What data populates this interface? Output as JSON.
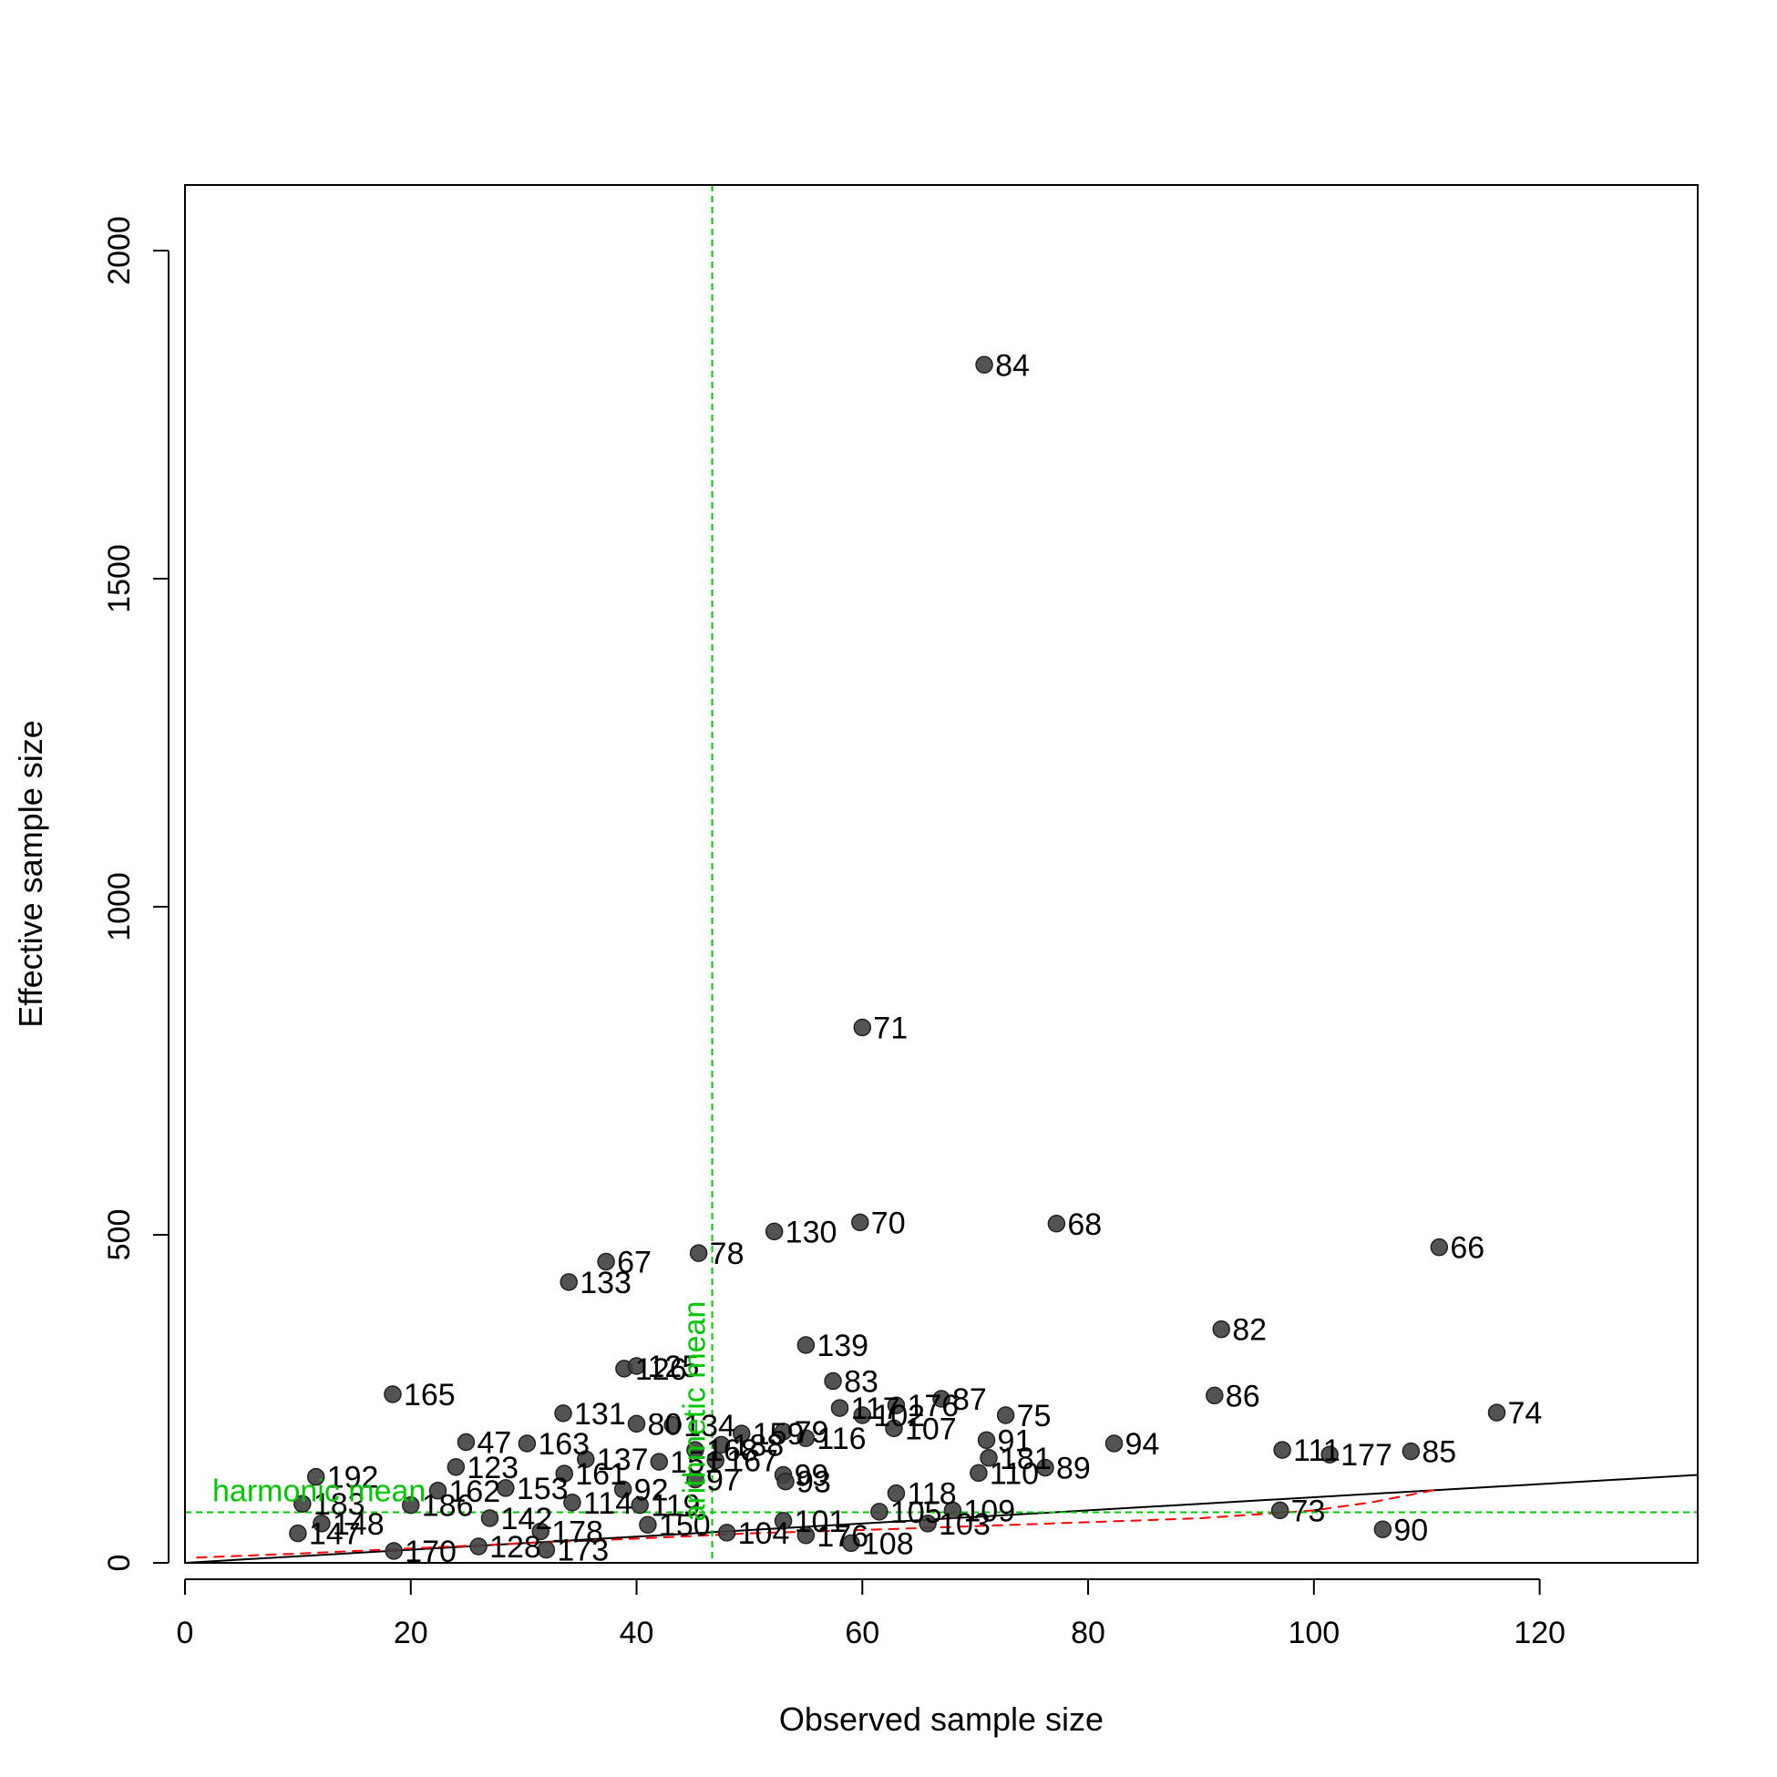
{
  "chart_data": {
    "type": "scatter",
    "title": "",
    "xlabel": "Observed sample size",
    "ylabel": "Effective sample size",
    "xlim": [
      0,
      134
    ],
    "ylim": [
      0,
      2100
    ],
    "xticks": [
      0,
      20,
      40,
      60,
      80,
      100,
      120
    ],
    "yticks": [
      0,
      500,
      1000,
      1500,
      2000
    ],
    "grid": false,
    "point_color": "#404040",
    "reference_lines": {
      "arithmetic_mean": {
        "label": "arithmetic mean",
        "x": 46.7,
        "color": "#00c800"
      },
      "harmonic_mean": {
        "label": "harmonic mean",
        "y": 77,
        "color": "#00c800"
      },
      "reference_line": {
        "from": [
          0,
          0
        ],
        "to": [
          134,
          134
        ],
        "color": "#000000"
      },
      "smoother": {
        "color": "#ff0000",
        "x": [
          1,
          10,
          20,
          30,
          40,
          50,
          60,
          70,
          80,
          90,
          100,
          105,
          111
        ],
        "y": [
          8,
          14,
          22,
          30,
          37,
          45,
          50,
          56,
          62,
          68,
          80,
          92,
          112
        ]
      }
    },
    "points": [
      {
        "label": "84",
        "x": 70.8,
        "y": 1826
      },
      {
        "label": "71",
        "x": 60.0,
        "y": 816
      },
      {
        "label": "70",
        "x": 59.8,
        "y": 519
      },
      {
        "label": "68",
        "x": 77.2,
        "y": 517
      },
      {
        "label": "66",
        "x": 111.1,
        "y": 481
      },
      {
        "label": "130",
        "x": 52.2,
        "y": 505
      },
      {
        "label": "78",
        "x": 45.5,
        "y": 472
      },
      {
        "label": "67",
        "x": 37.3,
        "y": 459
      },
      {
        "label": "133",
        "x": 34.0,
        "y": 428
      },
      {
        "label": "82",
        "x": 91.8,
        "y": 356
      },
      {
        "label": "139",
        "x": 55.0,
        "y": 332
      },
      {
        "label": "126",
        "x": 38.9,
        "y": 296
      },
      {
        "label": "125",
        "x": 40.0,
        "y": 300
      },
      {
        "label": "83",
        "x": 57.4,
        "y": 277
      },
      {
        "label": "165",
        "x": 18.4,
        "y": 257
      },
      {
        "label": "86",
        "x": 91.2,
        "y": 255
      },
      {
        "label": "87",
        "x": 67.0,
        "y": 250
      },
      {
        "label": "176",
        "x": 63.0,
        "y": 240
      },
      {
        "label": "117",
        "x": 58.0,
        "y": 236
      },
      {
        "label": "74",
        "x": 116.2,
        "y": 229
      },
      {
        "label": "131",
        "x": 33.5,
        "y": 228
      },
      {
        "label": "75",
        "x": 72.7,
        "y": 225
      },
      {
        "label": "102",
        "x": 60.0,
        "y": 225
      },
      {
        "label": "80",
        "x": 40.0,
        "y": 212
      },
      {
        "label": "134",
        "x": 43.2,
        "y": 210
      },
      {
        "label": "107",
        "x": 62.8,
        "y": 205
      },
      {
        "label": "79",
        "x": 53.0,
        "y": 200
      },
      {
        "label": "159",
        "x": 49.3,
        "y": 197
      },
      {
        "label": "116",
        "x": 55.0,
        "y": 190
      },
      {
        "label": "91",
        "x": 71.0,
        "y": 187
      },
      {
        "label": "47",
        "x": 24.9,
        "y": 184
      },
      {
        "label": "163",
        "x": 30.3,
        "y": 182
      },
      {
        "label": "94",
        "x": 82.3,
        "y": 182
      },
      {
        "label": "188",
        "x": 47.5,
        "y": 180
      },
      {
        "label": "168",
        "x": 45.2,
        "y": 172
      },
      {
        "label": "111",
        "x": 97.2,
        "y": 172
      },
      {
        "label": "177",
        "x": 101.4,
        "y": 165
      },
      {
        "label": "85",
        "x": 108.6,
        "y": 170
      },
      {
        "label": "181",
        "x": 71.2,
        "y": 160
      },
      {
        "label": "137",
        "x": 35.5,
        "y": 158
      },
      {
        "label": "151",
        "x": 42.0,
        "y": 154
      },
      {
        "label": "167",
        "x": 47.0,
        "y": 156
      },
      {
        "label": "123",
        "x": 24.0,
        "y": 146
      },
      {
        "label": "89",
        "x": 76.2,
        "y": 145
      },
      {
        "label": "110",
        "x": 70.3,
        "y": 137
      },
      {
        "label": "161",
        "x": 33.6,
        "y": 136
      },
      {
        "label": "99",
        "x": 53.0,
        "y": 134
      },
      {
        "label": "192",
        "x": 11.6,
        "y": 131
      },
      {
        "label": "97",
        "x": 45.2,
        "y": 127
      },
      {
        "label": "93",
        "x": 53.2,
        "y": 124
      },
      {
        "label": "153",
        "x": 28.4,
        "y": 114
      },
      {
        "label": "162",
        "x": 22.4,
        "y": 110
      },
      {
        "label": "92",
        "x": 38.8,
        "y": 112
      },
      {
        "label": "118",
        "x": 63.0,
        "y": 106
      },
      {
        "label": "183",
        "x": 10.4,
        "y": 90
      },
      {
        "label": "114",
        "x": 34.3,
        "y": 92
      },
      {
        "label": "119",
        "x": 40.3,
        "y": 88
      },
      {
        "label": "186",
        "x": 20.0,
        "y": 88
      },
      {
        "label": "73",
        "x": 97.0,
        "y": 80
      },
      {
        "label": "109",
        "x": 68.0,
        "y": 80
      },
      {
        "label": "105",
        "x": 61.5,
        "y": 78
      },
      {
        "label": "142",
        "x": 27.0,
        "y": 68
      },
      {
        "label": "101",
        "x": 53.0,
        "y": 64
      },
      {
        "label": "103",
        "x": 65.8,
        "y": 60
      },
      {
        "label": "148",
        "x": 12.1,
        "y": 60
      },
      {
        "label": "150",
        "x": 41.0,
        "y": 58
      },
      {
        "label": "90",
        "x": 106.1,
        "y": 51
      },
      {
        "label": "147",
        "x": 10.0,
        "y": 45
      },
      {
        "label": "178",
        "x": 31.5,
        "y": 48
      },
      {
        "label": "104",
        "x": 48.0,
        "y": 46
      },
      {
        "label": "176b",
        "x": 55.0,
        "y": 42
      },
      {
        "label": "108",
        "x": 59.0,
        "y": 30
      },
      {
        "label": "173",
        "x": 32.0,
        "y": 20
      },
      {
        "label": "170",
        "x": 18.5,
        "y": 18
      },
      {
        "label": "128",
        "x": 26.0,
        "y": 25
      }
    ],
    "display_labels": {
      "176b": "176"
    }
  }
}
